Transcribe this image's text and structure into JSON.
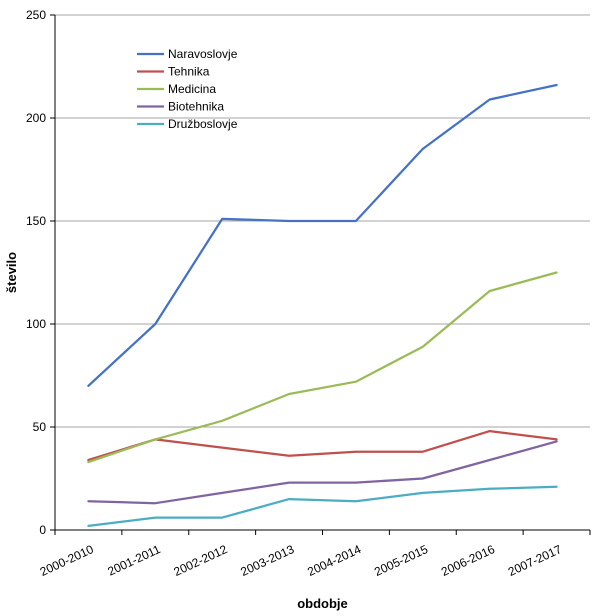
{
  "chart_data": {
    "type": "line",
    "title": "",
    "xlabel": "obdobje",
    "ylabel": "število",
    "categories": [
      "2000-2010",
      "2001-2011",
      "2002-2012",
      "2003-2013",
      "2004-2014",
      "2005-2015",
      "2006-2016",
      "2007-2017"
    ],
    "ylim": [
      0,
      250
    ],
    "yticks": [
      "0",
      "50",
      "100",
      "150",
      "200",
      "250"
    ],
    "grid": true,
    "legend_position": "top-left",
    "series": [
      {
        "name": "Naravoslovje",
        "color": "#4472C4",
        "values": [
          70,
          100,
          151,
          150,
          150,
          185,
          209,
          216
        ]
      },
      {
        "name": "Tehnika",
        "color": "#C0504D",
        "values": [
          34,
          44,
          40,
          36,
          38,
          38,
          48,
          44
        ]
      },
      {
        "name": "Medicina",
        "color": "#9BBB59",
        "values": [
          33,
          44,
          53,
          66,
          72,
          89,
          116,
          125
        ]
      },
      {
        "name": "Biotehnika",
        "color": "#8064A2",
        "values": [
          14,
          13,
          18,
          23,
          23,
          25,
          34,
          43
        ]
      },
      {
        "name": "Družboslovje",
        "color": "#4BACC6",
        "values": [
          2,
          6,
          6,
          15,
          14,
          18,
          20,
          21
        ]
      }
    ]
  }
}
